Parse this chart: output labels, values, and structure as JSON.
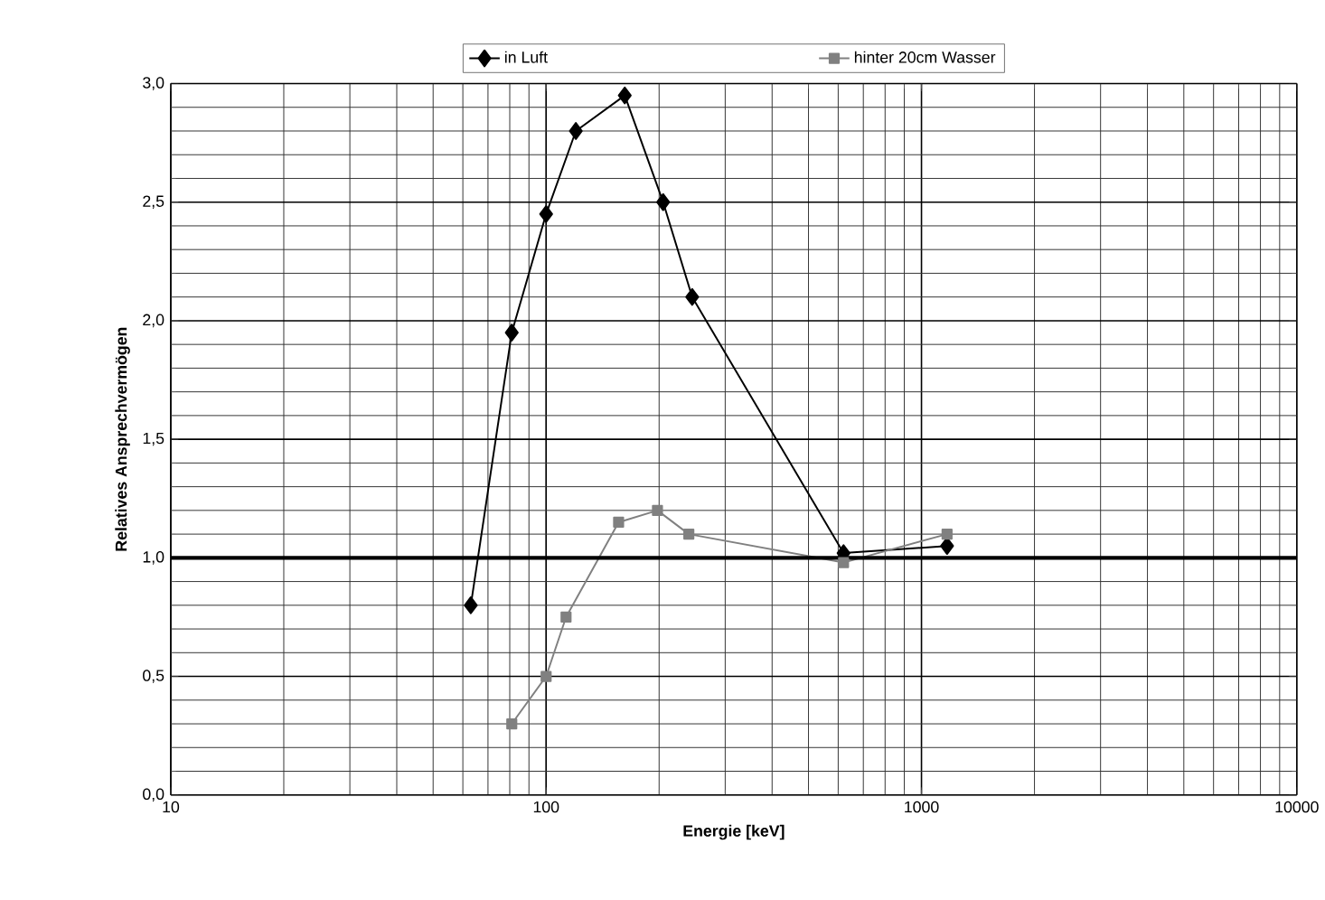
{
  "chart_data": {
    "type": "line",
    "xlabel": "Energie [keV]",
    "ylabel": "Relatives Ansprechvermögen",
    "log": "x",
    "xlim": [
      10,
      10000
    ],
    "xticks": [
      10,
      100,
      1000,
      10000
    ],
    "ylim": [
      0,
      3
    ],
    "yticks": [
      {
        "value": 0,
        "label": "0,0"
      },
      {
        "value": 0.5,
        "label": "0,5"
      },
      {
        "value": 1,
        "label": "1,0"
      },
      {
        "value": 1.5,
        "label": "1,5"
      },
      {
        "value": 2,
        "label": "2,0"
      },
      {
        "value": 2.5,
        "label": "2,5"
      },
      {
        "value": 3,
        "label": "3,0"
      }
    ],
    "grid": true,
    "legend": "top",
    "line_style": "solid",
    "ref_lines": [
      {
        "axis": "y",
        "value": 1,
        "color": "#000000"
      }
    ],
    "series": [
      {
        "name": "in Luft",
        "color": "#000000",
        "marker": "diamond",
        "x": [
          63,
          81,
          100,
          120,
          162,
          205,
          245,
          620,
          1170
        ],
        "values": [
          0.8,
          1.95,
          2.45,
          2.8,
          2.95,
          2.5,
          2.1,
          1.02,
          1.05
        ]
      },
      {
        "name": "hinter 20cm Wasser",
        "color": "#808080",
        "marker": "square",
        "x": [
          81,
          100,
          113,
          156,
          198,
          240,
          620,
          1170
        ],
        "values": [
          0.3,
          0.5,
          0.75,
          1.15,
          1.2,
          1.1,
          0.98,
          1.1
        ]
      }
    ]
  }
}
